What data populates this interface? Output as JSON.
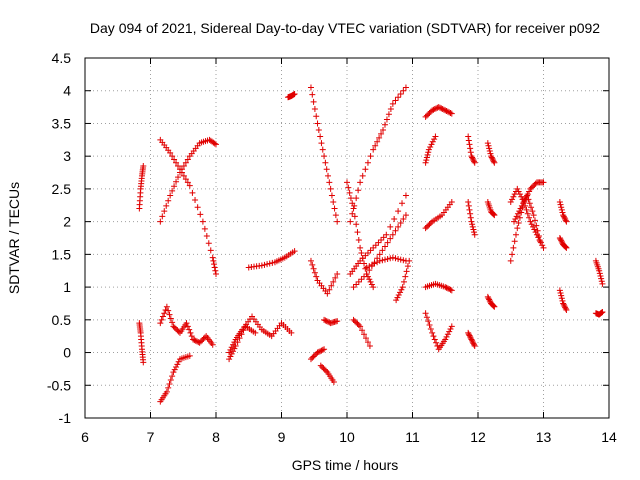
{
  "chart_data": {
    "type": "scatter",
    "title": "Day 094 of 2021, Sidereal Day-to-day VTEC variation (SDTVAR) for receiver p092",
    "xlabel": "GPS time / hours",
    "ylabel": "SDTVAR / TECUs",
    "xlim": [
      6,
      14
    ],
    "ylim": [
      -1,
      4.5
    ],
    "xticks": [
      6,
      7,
      8,
      9,
      10,
      11,
      12,
      13,
      14
    ],
    "yticks": [
      -1,
      -0.5,
      0,
      0.5,
      1,
      1.5,
      2,
      2.5,
      3,
      3.5,
      4,
      4.5
    ],
    "xtick_labels": [
      "6",
      "7",
      "8",
      "9",
      "10",
      "11",
      "12",
      "13",
      "14"
    ],
    "ytick_labels": [
      "-1",
      "-0.5",
      "0",
      "0.5",
      "1",
      "1.5",
      "2",
      "2.5",
      "3",
      "3.5",
      "4",
      "4.5"
    ],
    "grid": true,
    "marker": "+",
    "series": [
      {
        "name": "SDTVAR",
        "color": "#e00000",
        "tracks": [
          {
            "x": [
              6.83,
              6.85,
              6.87,
              6.89
            ],
            "y": [
              2.2,
              2.5,
              2.7,
              2.85
            ]
          },
          {
            "x": [
              6.83,
              6.85,
              6.87,
              6.89
            ],
            "y": [
              0.45,
              0.3,
              0.05,
              -0.15
            ]
          },
          {
            "x": [
              7.15,
              7.3,
              7.45,
              7.6,
              7.8,
              7.95,
              8.0
            ],
            "y": [
              3.25,
              3.05,
              2.8,
              2.55,
              2.0,
              1.45,
              1.2
            ]
          },
          {
            "x": [
              7.15,
              7.3,
              7.45,
              7.6,
              7.75,
              7.9,
              8.0
            ],
            "y": [
              2.0,
              2.4,
              2.75,
              3.0,
              3.2,
              3.25,
              3.18
            ]
          },
          {
            "x": [
              7.15,
              7.25,
              7.35,
              7.45,
              7.55,
              7.65,
              7.75,
              7.85,
              7.95
            ],
            "y": [
              0.45,
              0.7,
              0.4,
              0.3,
              0.45,
              0.2,
              0.15,
              0.25,
              0.12
            ]
          },
          {
            "x": [
              7.15,
              7.25,
              7.35,
              7.45,
              7.6
            ],
            "y": [
              -0.75,
              -0.6,
              -0.3,
              -0.1,
              -0.05
            ]
          },
          {
            "x": [
              8.2,
              8.3,
              8.4,
              8.55,
              8.7,
              8.85,
              9.0,
              9.15
            ],
            "y": [
              0.0,
              0.2,
              0.35,
              0.55,
              0.35,
              0.25,
              0.45,
              0.3
            ]
          },
          {
            "x": [
              8.2,
              8.3,
              8.45,
              8.6
            ],
            "y": [
              -0.1,
              0.1,
              0.4,
              0.3
            ]
          },
          {
            "x": [
              8.5,
              8.7,
              8.9,
              9.05,
              9.2
            ],
            "y": [
              1.3,
              1.33,
              1.38,
              1.45,
              1.55
            ]
          },
          {
            "x": [
              9.1,
              9.15,
              9.2
            ],
            "y": [
              3.9,
              3.92,
              3.95
            ]
          },
          {
            "x": [
              9.45,
              9.55,
              9.65,
              9.75,
              9.85
            ],
            "y": [
              4.05,
              3.5,
              3.0,
              2.5,
              2.0
            ]
          },
          {
            "x": [
              9.45,
              9.55,
              9.7,
              9.85
            ],
            "y": [
              1.4,
              1.1,
              0.9,
              1.2
            ]
          },
          {
            "x": [
              9.45,
              9.55,
              9.65
            ],
            "y": [
              -0.1,
              0.0,
              0.05
            ]
          },
          {
            "x": [
              9.6,
              9.7,
              9.8
            ],
            "y": [
              -0.2,
              -0.3,
              -0.45
            ]
          },
          {
            "x": [
              9.65,
              9.75,
              9.85
            ],
            "y": [
              0.5,
              0.45,
              0.48
            ]
          },
          {
            "x": [
              10.0,
              10.1,
              10.2,
              10.3,
              10.4
            ],
            "y": [
              2.6,
              2.2,
              1.6,
              1.2,
              1.0
            ]
          },
          {
            "x": [
              10.05,
              10.2,
              10.4,
              10.55,
              10.7,
              10.9
            ],
            "y": [
              2.0,
              2.6,
              3.1,
              3.4,
              3.8,
              4.05
            ]
          },
          {
            "x": [
              10.05,
              10.2,
              10.4,
              10.6,
              10.9
            ],
            "y": [
              1.2,
              1.4,
              1.6,
              1.8,
              2.4
            ]
          },
          {
            "x": [
              10.1,
              10.3,
              10.5,
              10.7,
              10.9
            ],
            "y": [
              1.0,
              1.2,
              1.5,
              1.8,
              2.1
            ]
          },
          {
            "x": [
              10.3,
              10.5,
              10.7,
              10.9
            ],
            "y": [
              1.3,
              1.4,
              1.45,
              1.4
            ]
          },
          {
            "x": [
              10.1,
              10.2,
              10.35
            ],
            "y": [
              0.5,
              0.4,
              0.1
            ]
          },
          {
            "x": [
              10.75,
              10.85,
              10.95
            ],
            "y": [
              0.8,
              1.0,
              1.4
            ]
          },
          {
            "x": [
              11.2,
              11.3,
              11.4,
              11.5,
              11.6
            ],
            "y": [
              3.6,
              3.7,
              3.75,
              3.7,
              3.65
            ]
          },
          {
            "x": [
              11.2,
              11.25,
              11.35
            ],
            "y": [
              2.9,
              3.1,
              3.3
            ]
          },
          {
            "x": [
              11.2,
              11.3,
              11.45,
              11.6
            ],
            "y": [
              1.9,
              2.0,
              2.1,
              2.3
            ]
          },
          {
            "x": [
              11.2,
              11.35,
              11.5,
              11.6
            ],
            "y": [
              1.0,
              1.05,
              1.0,
              0.95
            ]
          },
          {
            "x": [
              11.2,
              11.3,
              11.4,
              11.5,
              11.6
            ],
            "y": [
              0.6,
              0.3,
              0.05,
              0.2,
              0.4
            ]
          },
          {
            "x": [
              11.85,
              11.9,
              11.95
            ],
            "y": [
              3.3,
              3.0,
              2.9
            ]
          },
          {
            "x": [
              11.85,
              11.9,
              11.95
            ],
            "y": [
              2.3,
              2.0,
              1.8
            ]
          },
          {
            "x": [
              11.85,
              11.9,
              11.95
            ],
            "y": [
              0.3,
              0.2,
              0.1
            ]
          },
          {
            "x": [
              12.15,
              12.2,
              12.25
            ],
            "y": [
              3.2,
              3.0,
              2.9
            ]
          },
          {
            "x": [
              12.15,
              12.2,
              12.25
            ],
            "y": [
              2.3,
              2.15,
              2.1
            ]
          },
          {
            "x": [
              12.15,
              12.2,
              12.25
            ],
            "y": [
              0.85,
              0.75,
              0.7
            ]
          },
          {
            "x": [
              12.5,
              12.6,
              12.7,
              12.8,
              12.9,
              13.0
            ],
            "y": [
              1.4,
              1.9,
              2.3,
              2.5,
              2.6,
              2.6
            ]
          },
          {
            "x": [
              12.5,
              12.6,
              12.7,
              12.8,
              12.9,
              13.0
            ],
            "y": [
              2.3,
              2.5,
              2.3,
              2.0,
              1.8,
              1.6
            ]
          },
          {
            "x": [
              12.55,
              12.65,
              12.75,
              12.85,
              12.95
            ],
            "y": [
              2.0,
              2.2,
              2.4,
              2.1,
              1.7
            ]
          },
          {
            "x": [
              13.25,
              13.3,
              13.35
            ],
            "y": [
              2.3,
              2.1,
              2.0
            ]
          },
          {
            "x": [
              13.25,
              13.3,
              13.35
            ],
            "y": [
              1.75,
              1.65,
              1.6
            ]
          },
          {
            "x": [
              13.25,
              13.3,
              13.35
            ],
            "y": [
              0.95,
              0.75,
              0.65
            ]
          },
          {
            "x": [
              13.8,
              13.85,
              13.9
            ],
            "y": [
              1.4,
              1.25,
              1.05
            ]
          },
          {
            "x": [
              13.8,
              13.85,
              13.9
            ],
            "y": [
              0.6,
              0.58,
              0.62
            ]
          }
        ]
      }
    ]
  }
}
